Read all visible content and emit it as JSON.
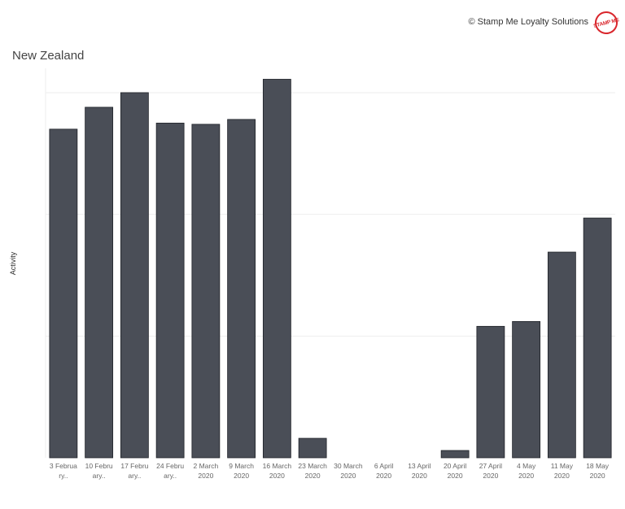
{
  "header": {
    "copyright": "© Stamp Me Loyalty Solutions",
    "logo_text": "STAMP ME",
    "logo_color": "#d9262c"
  },
  "chart_data": {
    "type": "bar",
    "title": "New Zealand",
    "xlabel": "",
    "ylabel": "Activity",
    "categories": [
      [
        "3 Februa",
        "ry.."
      ],
      [
        "10 Febru",
        "ary.."
      ],
      [
        "17 Febru",
        "ary.."
      ],
      [
        "24 Febru",
        "ary.."
      ],
      [
        "2 March",
        "2020"
      ],
      [
        "9 March",
        "2020"
      ],
      [
        "16 March",
        "2020"
      ],
      [
        "23 March",
        "2020"
      ],
      [
        "30 March",
        "2020"
      ],
      [
        "6 April",
        "2020"
      ],
      [
        "13 April",
        "2020"
      ],
      [
        "20 April",
        "2020"
      ],
      [
        "27 April",
        "2020"
      ],
      [
        "4 May",
        "2020"
      ],
      [
        "11 May",
        "2020"
      ],
      [
        "18 May",
        "2020"
      ]
    ],
    "values": [
      2.7,
      2.88,
      3.0,
      2.75,
      2.74,
      2.78,
      3.11,
      0.16,
      0,
      0,
      0,
      0.06,
      1.08,
      1.12,
      1.69,
      1.97
    ],
    "ylim": [
      0,
      3.2
    ],
    "gridlines": [
      1,
      2,
      3
    ],
    "bar_color": "#4a4e57",
    "grid": true,
    "legend": "none"
  }
}
